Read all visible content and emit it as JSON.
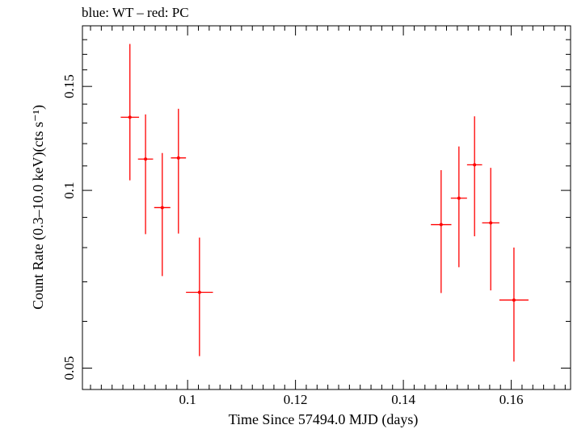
{
  "chart_data": {
    "type": "scatter",
    "title": "blue: WT – red: PC",
    "xlabel": "Time Since 57494.0 MJD (days)",
    "ylabel": "Count Rate (0.3–10.0 keV)(cts s⁻¹)",
    "xlim": [
      0.0805,
      0.171
    ],
    "ylim": [
      0.046,
      0.19
    ],
    "ylog": true,
    "x_ticks": [
      0.1,
      0.12,
      0.14,
      0.16
    ],
    "x_tick_labels": [
      "0.1",
      "0.12",
      "0.14",
      "0.16"
    ],
    "y_ticks": [
      0.05,
      0.1,
      0.15
    ],
    "y_tick_labels": [
      "0.05",
      "0.1",
      "0.15"
    ],
    "grid": false,
    "series": [
      {
        "color": "#ff0000",
        "points": [
          {
            "x": 0.0893,
            "xerr": 0.0017,
            "y": 0.133,
            "ylo": 0.104,
            "yhi": 0.177
          },
          {
            "x": 0.0922,
            "xerr": 0.0014,
            "y": 0.113,
            "ylo": 0.0843,
            "yhi": 0.1345
          },
          {
            "x": 0.0953,
            "xerr": 0.0015,
            "y": 0.0935,
            "ylo": 0.0716,
            "yhi": 0.1157
          },
          {
            "x": 0.0983,
            "xerr": 0.0014,
            "y": 0.1135,
            "ylo": 0.0845,
            "yhi": 0.1375
          },
          {
            "x": 0.1022,
            "xerr": 0.0025,
            "y": 0.0672,
            "ylo": 0.0524,
            "yhi": 0.0832
          },
          {
            "x": 0.147,
            "xerr": 0.0019,
            "y": 0.0875,
            "ylo": 0.067,
            "yhi": 0.1082
          },
          {
            "x": 0.1503,
            "xerr": 0.0015,
            "y": 0.097,
            "ylo": 0.0741,
            "yhi": 0.1187
          },
          {
            "x": 0.1532,
            "xerr": 0.0014,
            "y": 0.1105,
            "ylo": 0.0836,
            "yhi": 0.1335
          },
          {
            "x": 0.1562,
            "xerr": 0.0016,
            "y": 0.0881,
            "ylo": 0.0677,
            "yhi": 0.1092
          },
          {
            "x": 0.1605,
            "xerr": 0.0027,
            "y": 0.0652,
            "ylo": 0.0513,
            "yhi": 0.08
          }
        ]
      }
    ]
  }
}
